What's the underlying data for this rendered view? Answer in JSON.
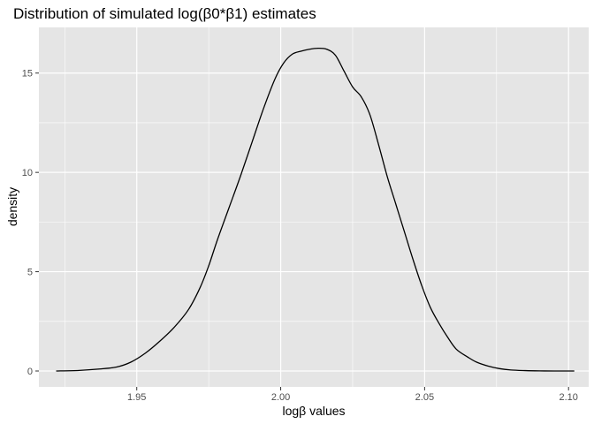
{
  "chart_data": {
    "type": "line",
    "title": "Distribution of simulated log(β0*β1) estimates",
    "xlabel": "logβ values",
    "ylabel": "density",
    "xlim": [
      1.916,
      2.107
    ],
    "ylim": [
      -0.8,
      17.3
    ],
    "x_ticks": [
      1.95,
      2.0,
      2.05,
      2.1
    ],
    "x_tick_labels": [
      "1.95",
      "2.00",
      "2.05",
      "2.10"
    ],
    "y_ticks": [
      0,
      5,
      10,
      15
    ],
    "y_tick_labels": [
      "0",
      "5",
      "10",
      "15"
    ],
    "grid": true,
    "legend": "none",
    "colors": {
      "panel": "#e5e5e5",
      "grid": "#ffffff",
      "line": "#000000",
      "tick_text": "#4d4d4d"
    },
    "series": [
      {
        "x": [
          1.922,
          1.93,
          1.937,
          1.943,
          1.948,
          1.953,
          1.958,
          1.963,
          1.968,
          1.972,
          1.975,
          1.978,
          1.982,
          1.986,
          1.99,
          1.994,
          1.998,
          2.001,
          2.004,
          2.007,
          2.01,
          2.013,
          2.016,
          2.019,
          2.022,
          2.025,
          2.028,
          2.031,
          2.034,
          2.037,
          2.04,
          2.043,
          2.046,
          2.049,
          2.052,
          2.055,
          2.058,
          2.061,
          2.065,
          2.068,
          2.072,
          2.076,
          2.08,
          2.085,
          2.09,
          2.095,
          2.102
        ],
        "y": [
          0.0,
          0.03,
          0.1,
          0.2,
          0.45,
          0.9,
          1.5,
          2.2,
          3.1,
          4.2,
          5.3,
          6.6,
          8.2,
          9.8,
          11.5,
          13.2,
          14.7,
          15.5,
          15.95,
          16.1,
          16.2,
          16.25,
          16.2,
          15.9,
          15.1,
          14.3,
          13.8,
          12.9,
          11.4,
          9.8,
          8.4,
          7.0,
          5.6,
          4.3,
          3.2,
          2.4,
          1.7,
          1.1,
          0.7,
          0.45,
          0.25,
          0.12,
          0.05,
          0.02,
          0.005,
          0.0,
          0.0
        ]
      }
    ]
  }
}
